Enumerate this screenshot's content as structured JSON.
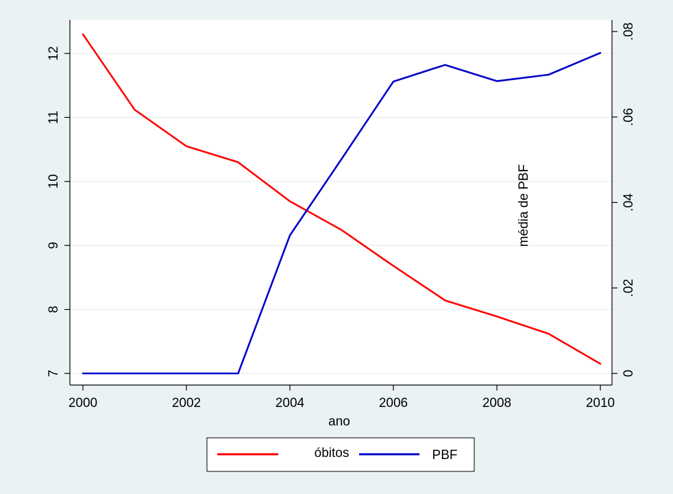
{
  "chart_data": {
    "type": "line",
    "x": [
      2000,
      2001,
      2002,
      2003,
      2004,
      2005,
      2006,
      2007,
      2008,
      2009,
      2010
    ],
    "xlabel": "ano",
    "x_ticks": [
      "2000",
      "2002",
      "2004",
      "2006",
      "2008",
      "2010"
    ],
    "y_left_ticks": [
      "7",
      "8",
      "9",
      "10",
      "11",
      "12"
    ],
    "y_left_range": [
      7,
      12.3
    ],
    "y_right_label": "média de PBF",
    "y_right_ticks": [
      "0",
      ".02",
      ".04",
      ".06",
      ".08"
    ],
    "y_right_range": [
      0,
      0.08
    ],
    "grid": true,
    "legend_position": "bottom",
    "series": [
      {
        "name": "óbitos",
        "axis": "left",
        "color": "#ff0000",
        "values": [
          12.3,
          11.12,
          10.55,
          10.3,
          9.69,
          9.24,
          8.68,
          8.14,
          7.89,
          7.62,
          7.15
        ]
      },
      {
        "name": "PBF",
        "axis": "right",
        "color": "#0000cc",
        "values": [
          0,
          0,
          0,
          0,
          0.0323,
          0.0502,
          0.0683,
          0.0722,
          0.0684,
          0.0699,
          0.075
        ]
      }
    ]
  }
}
